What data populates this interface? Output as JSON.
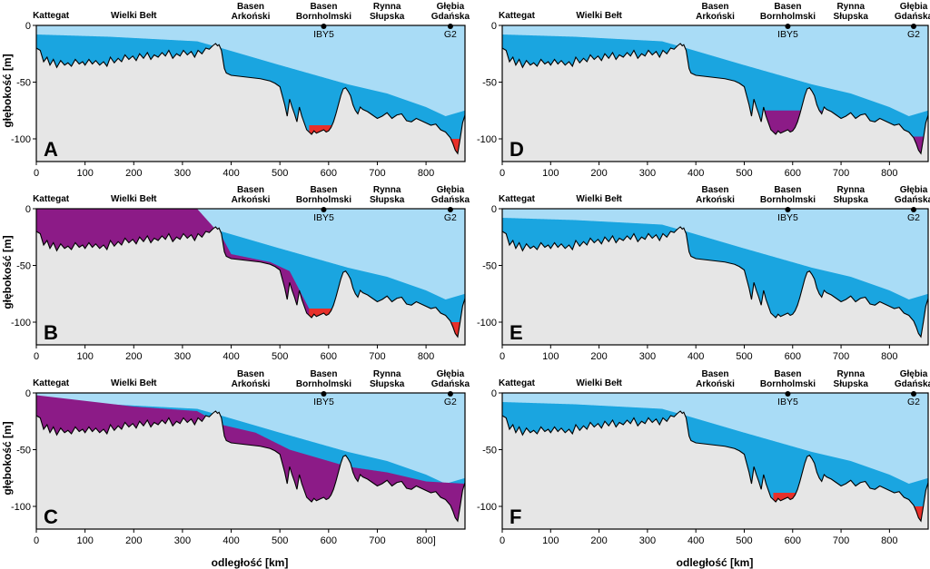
{
  "figure": {
    "ylabel": "głębokość [m]",
    "xlabel": "odległość [km]"
  },
  "colors": {
    "water_light": "#a9dcf6",
    "water_mid": "#1aa5e0",
    "anoxic_red": "#e8302a",
    "purple": "#8c1b87",
    "seabed": "#e6e6e6",
    "outline": "#000000"
  },
  "regions": [
    {
      "name": "Kattegat",
      "x": 30
    },
    {
      "name": "Wielki Bełt",
      "x": 200
    },
    {
      "name": "Basen Arkoński",
      "x": 440
    },
    {
      "name": "Basen Bornholmski",
      "x": 590
    },
    {
      "name": "Rynna Słupska",
      "x": 720
    },
    {
      "name": "Głębia Gdańska",
      "x": 850
    }
  ],
  "stations": [
    {
      "name": "IBY5",
      "x": 590
    },
    {
      "name": "G2",
      "x": 850
    }
  ],
  "chart_data": [
    {
      "panel": "A",
      "type": "area",
      "xlim": [
        0,
        880
      ],
      "ylim": [
        -120,
        0
      ],
      "xticks": [
        "0",
        "100",
        "200",
        "300",
        "400",
        "500",
        "600",
        "700",
        "800"
      ],
      "yticks": [
        "0",
        "-50",
        "-100"
      ],
      "purple_layer": "none",
      "red_pockets": [
        "bornholm",
        "gdansk"
      ]
    },
    {
      "panel": "B",
      "type": "area",
      "xlim": [
        0,
        880
      ],
      "ylim": [
        -120,
        0
      ],
      "xticks": [
        "0",
        "100",
        "200",
        "300",
        "400",
        "500",
        "600",
        "700",
        "800"
      ],
      "yticks": [
        "0",
        "-50",
        "-100"
      ],
      "purple_layer": "west",
      "red_pockets": [
        "bornholm",
        "gdansk"
      ]
    },
    {
      "panel": "C",
      "type": "area",
      "xlim": [
        0,
        880
      ],
      "ylim": [
        -120,
        0
      ],
      "xticks": [
        "0",
        "100",
        "200",
        "300",
        "400",
        "500",
        "600",
        "700",
        "800]"
      ],
      "yticks": [
        "0",
        "-50",
        "-100"
      ],
      "purple_layer": "full",
      "red_pockets": []
    },
    {
      "panel": "D",
      "type": "area",
      "xlim": [
        0,
        880
      ],
      "ylim": [
        -120,
        0
      ],
      "xticks": [
        "0",
        "100",
        "200",
        "300",
        "400",
        "500",
        "600",
        "700",
        "800"
      ],
      "yticks": [
        "0",
        "-50",
        "-100"
      ],
      "purple_layer": "deep_basins",
      "red_pockets": []
    },
    {
      "panel": "E",
      "type": "area",
      "xlim": [
        0,
        880
      ],
      "ylim": [
        -120,
        0
      ],
      "xticks": [
        "0",
        "100",
        "200",
        "300",
        "400",
        "500",
        "600",
        "700",
        "800"
      ],
      "yticks": [
        "0",
        "-50",
        "-100"
      ],
      "purple_layer": "none",
      "red_pockets": []
    },
    {
      "panel": "F",
      "type": "area",
      "xlim": [
        0,
        880
      ],
      "ylim": [
        -120,
        0
      ],
      "xticks": [
        "0",
        "100",
        "200",
        "300",
        "400",
        "500",
        "600",
        "700",
        "800"
      ],
      "yticks": [
        "0",
        "-50",
        "-100"
      ],
      "purple_layer": "none",
      "red_pockets": [
        "bornholm",
        "gdansk"
      ]
    }
  ],
  "bathymetry": {
    "x": [
      0,
      8,
      15,
      22,
      28,
      35,
      42,
      50,
      58,
      65,
      72,
      80,
      88,
      95,
      100,
      108,
      115,
      122,
      130,
      138,
      145,
      152,
      160,
      168,
      175,
      182,
      190,
      198,
      205,
      212,
      220,
      228,
      235,
      242,
      250,
      258,
      265,
      272,
      280,
      288,
      295,
      302,
      310,
      318,
      325,
      332,
      340,
      348,
      355,
      362,
      368,
      372,
      375,
      378,
      380,
      383,
      386,
      390,
      400,
      420,
      440,
      460,
      480,
      490,
      500,
      505,
      510,
      515,
      520,
      525,
      530,
      535,
      540,
      545,
      550,
      555,
      560,
      565,
      570,
      575,
      580,
      585,
      590,
      595,
      600,
      605,
      610,
      615,
      620,
      625,
      630,
      635,
      640,
      645,
      650,
      655,
      660,
      665,
      670,
      680,
      690,
      700,
      710,
      720,
      730,
      740,
      750,
      760,
      770,
      780,
      790,
      800,
      810,
      820,
      830,
      840,
      850,
      855,
      860,
      865,
      870,
      875,
      880
    ],
    "depth": [
      -20,
      -22,
      -32,
      -28,
      -35,
      -30,
      -37,
      -31,
      -35,
      -33,
      -36,
      -30,
      -34,
      -32,
      -35,
      -30,
      -34,
      -31,
      -35,
      -32,
      -36,
      -28,
      -33,
      -29,
      -32,
      -26,
      -30,
      -27,
      -31,
      -25,
      -29,
      -24,
      -30,
      -26,
      -28,
      -24,
      -27,
      -22,
      -29,
      -25,
      -27,
      -22,
      -26,
      -23,
      -28,
      -22,
      -25,
      -20,
      -21,
      -18,
      -16,
      -18,
      -17,
      -20,
      -22,
      -30,
      -38,
      -42,
      -44,
      -45,
      -46,
      -47,
      -49,
      -51,
      -54,
      -62,
      -70,
      -80,
      -65,
      -72,
      -78,
      -85,
      -72,
      -80,
      -86,
      -92,
      -94,
      -96,
      -93,
      -95,
      -94,
      -93,
      -92,
      -94,
      -93,
      -90,
      -85,
      -78,
      -70,
      -62,
      -56,
      -55,
      -58,
      -62,
      -70,
      -75,
      -78,
      -72,
      -74,
      -76,
      -79,
      -82,
      -80,
      -77,
      -82,
      -79,
      -78,
      -84,
      -85,
      -82,
      -84,
      -86,
      -88,
      -87,
      -92,
      -94,
      -99,
      -104,
      -110,
      -113,
      -100,
      -86,
      -79
    ]
  }
}
